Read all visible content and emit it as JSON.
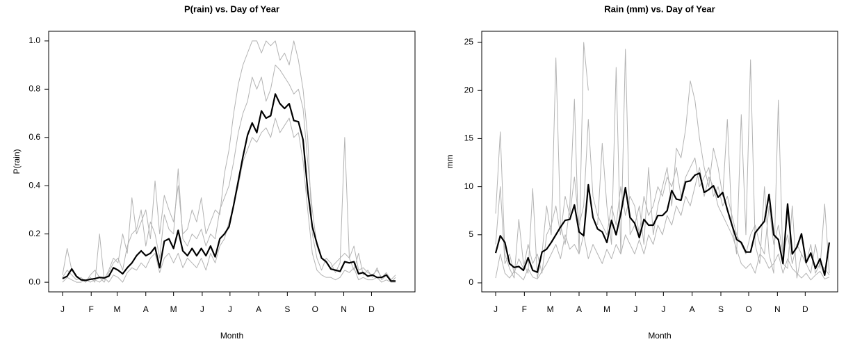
{
  "chart_data": [
    {
      "type": "line",
      "title": "P(rain) vs. Day of Year",
      "xlabel": "Month",
      "ylabel": "P(rain)",
      "x": [
        1,
        6,
        11,
        16,
        21,
        26,
        31,
        36,
        41,
        46,
        51,
        56,
        61,
        66,
        71,
        76,
        81,
        86,
        91,
        96,
        101,
        106,
        111,
        116,
        121,
        126,
        131,
        136,
        141,
        146,
        151,
        156,
        161,
        166,
        171,
        176,
        181,
        186,
        191,
        196,
        201,
        206,
        211,
        216,
        221,
        226,
        231,
        236,
        241,
        246,
        251,
        256,
        261,
        266,
        271,
        276,
        281,
        286,
        291,
        296,
        301,
        306,
        311,
        316,
        321,
        326,
        331,
        336,
        341,
        346,
        351,
        356,
        361
      ],
      "xlim": [
        -14,
        382
      ],
      "xticks": [
        {
          "value": 1,
          "label": "J"
        },
        {
          "value": 32,
          "label": "F"
        },
        {
          "value": 60,
          "label": "M"
        },
        {
          "value": 91,
          "label": "A"
        },
        {
          "value": 121,
          "label": "M"
        },
        {
          "value": 152,
          "label": "J"
        },
        {
          "value": 182,
          "label": "J"
        },
        {
          "value": 213,
          "label": "A"
        },
        {
          "value": 244,
          "label": "S"
        },
        {
          "value": 274,
          "label": "O"
        },
        {
          "value": 305,
          "label": "N"
        },
        {
          "value": 335,
          "label": "D"
        }
      ],
      "ylim": [
        -0.04,
        1.04
      ],
      "yticks": [
        {
          "value": 0,
          "label": "0.0"
        },
        {
          "value": 0.2,
          "label": "0.2"
        },
        {
          "value": 0.4,
          "label": "0.4"
        },
        {
          "value": 0.6,
          "label": "0.6"
        },
        {
          "value": 0.8,
          "label": "0.8"
        },
        {
          "value": 1,
          "label": "1.0"
        }
      ],
      "series": [
        {
          "color": "#b3b3b3",
          "values": [
            0.03,
            0.14,
            0.05,
            0.02,
            0.01,
            0.0,
            0.02,
            0.0,
            0.2,
            0.01,
            0.05,
            0.1,
            0.08,
            0.2,
            0.12,
            0.35,
            0.2,
            0.25,
            0.3,
            0.18,
            0.42,
            0.2,
            0.36,
            0.3,
            0.25,
            0.4,
            0.2,
            0.22,
            0.3,
            0.25,
            0.35,
            0.2,
            0.25,
            0.3,
            0.28,
            0.45,
            0.55,
            0.7,
            0.82,
            0.9,
            0.95,
            1.0,
            1.0,
            0.95,
            1.0,
            0.98,
            1.0,
            0.92,
            0.95,
            0.9,
            1.0,
            0.92,
            0.8,
            0.6,
            0.2,
            0.1,
            0.05,
            0.1,
            0.08,
            0.04,
            0.08,
            0.6,
            0.1,
            0.05,
            0.12,
            0.03,
            0.05,
            0.02,
            0.06,
            0.01,
            0.03,
            0.0,
            0.02
          ]
        },
        {
          "color": "#b3b3b3",
          "values": [
            0.0,
            0.02,
            0.01,
            0.0,
            0.0,
            0.01,
            0.0,
            0.01,
            0.0,
            0.02,
            0.0,
            0.03,
            0.02,
            0.0,
            0.04,
            0.06,
            0.05,
            0.08,
            0.06,
            0.1,
            0.12,
            0.04,
            0.1,
            0.12,
            0.08,
            0.12,
            0.06,
            0.1,
            0.08,
            0.06,
            0.1,
            0.05,
            0.12,
            0.08,
            0.15,
            0.18,
            0.25,
            0.32,
            0.4,
            0.5,
            0.55,
            0.6,
            0.58,
            0.62,
            0.64,
            0.6,
            0.68,
            0.62,
            0.65,
            0.68,
            0.6,
            0.62,
            0.5,
            0.3,
            0.12,
            0.05,
            0.03,
            0.02,
            0.02,
            0.01,
            0.02,
            0.05,
            0.04,
            0.06,
            0.01,
            0.02,
            0.01,
            0.01,
            0.02,
            0.0,
            0.01,
            0.0,
            0.0
          ]
        },
        {
          "color": "#b3b3b3",
          "values": [
            0.02,
            0.05,
            0.03,
            0.01,
            0.02,
            0.0,
            0.03,
            0.05,
            0.02,
            0.0,
            0.04,
            0.08,
            0.1,
            0.05,
            0.15,
            0.2,
            0.22,
            0.3,
            0.15,
            0.25,
            0.2,
            0.1,
            0.28,
            0.22,
            0.2,
            0.47,
            0.18,
            0.15,
            0.2,
            0.18,
            0.22,
            0.15,
            0.2,
            0.18,
            0.3,
            0.35,
            0.4,
            0.5,
            0.62,
            0.7,
            0.75,
            0.85,
            0.8,
            0.85,
            0.75,
            0.8,
            0.9,
            0.88,
            0.85,
            0.82,
            0.78,
            0.8,
            0.72,
            0.5,
            0.3,
            0.15,
            0.1,
            0.08,
            0.06,
            0.08,
            0.1,
            0.12,
            0.1,
            0.15,
            0.05,
            0.06,
            0.04,
            0.03,
            0.05,
            0.02,
            0.04,
            0.01,
            0.03
          ]
        },
        {
          "color": "#000000",
          "values": [
            0.015,
            0.025,
            0.055,
            0.025,
            0.01,
            0.008,
            0.012,
            0.015,
            0.02,
            0.018,
            0.025,
            0.06,
            0.05,
            0.035,
            0.06,
            0.08,
            0.11,
            0.13,
            0.11,
            0.12,
            0.145,
            0.06,
            0.17,
            0.18,
            0.14,
            0.215,
            0.13,
            0.11,
            0.14,
            0.11,
            0.14,
            0.11,
            0.15,
            0.105,
            0.18,
            0.2,
            0.23,
            0.32,
            0.42,
            0.52,
            0.61,
            0.66,
            0.62,
            0.71,
            0.68,
            0.69,
            0.78,
            0.74,
            0.72,
            0.74,
            0.67,
            0.665,
            0.59,
            0.38,
            0.23,
            0.16,
            0.1,
            0.085,
            0.055,
            0.05,
            0.045,
            0.085,
            0.08,
            0.085,
            0.035,
            0.04,
            0.025,
            0.03,
            0.02,
            0.02,
            0.03,
            0.005,
            0.005
          ]
        }
      ]
    },
    {
      "type": "line",
      "title": "Rain (mm) vs. Day of Year",
      "xlabel": "Month",
      "ylabel": "mm",
      "x": [
        1,
        6,
        11,
        16,
        21,
        26,
        31,
        36,
        41,
        46,
        51,
        56,
        61,
        66,
        71,
        76,
        81,
        86,
        91,
        96,
        101,
        106,
        111,
        116,
        121,
        126,
        131,
        136,
        141,
        146,
        151,
        156,
        161,
        166,
        171,
        176,
        181,
        186,
        191,
        196,
        201,
        206,
        211,
        216,
        221,
        226,
        231,
        236,
        241,
        246,
        251,
        256,
        261,
        266,
        271,
        276,
        281,
        286,
        291,
        296,
        301,
        306,
        311,
        316,
        321,
        326,
        331,
        336,
        341,
        346,
        351,
        356,
        361
      ],
      "xlim": [
        -14,
        370
      ],
      "xticks": [
        {
          "value": 1,
          "label": "J"
        },
        {
          "value": 32,
          "label": "F"
        },
        {
          "value": 60,
          "label": "M"
        },
        {
          "value": 91,
          "label": "A"
        },
        {
          "value": 121,
          "label": "M"
        },
        {
          "value": 152,
          "label": "J"
        },
        {
          "value": 182,
          "label": "J"
        },
        {
          "value": 213,
          "label": "A"
        },
        {
          "value": 244,
          "label": "S"
        },
        {
          "value": 274,
          "label": "O"
        },
        {
          "value": 305,
          "label": "N"
        },
        {
          "value": 335,
          "label": "D"
        }
      ],
      "ylim": [
        -0.94,
        26.16
      ],
      "yticks": [
        0,
        5,
        10,
        15,
        20,
        25
      ],
      "series": [
        {
          "color": "#b3b3b3",
          "values": [
            7.2,
            15.7,
            3.0,
            1.5,
            0.5,
            6.6,
            2.0,
            1.0,
            9.8,
            0.5,
            3.0,
            8.0,
            5.0,
            23.4,
            6.0,
            4.0,
            8.0,
            19.1,
            3.0,
            25.0,
            20.0,
            null,
            6.0,
            14.5,
            8.0,
            4.0,
            22.4,
            3.0,
            24.3,
            5.0,
            6.0,
            8.0,
            4.0,
            12.0,
            5.0,
            8.0,
            10.0,
            12.0,
            8.0,
            14.0,
            13.0,
            16.0,
            21.0,
            19.0,
            15.0,
            12.0,
            10.0,
            14.0,
            12.0,
            9.0,
            17.0,
            6.0,
            3.0,
            17.5,
            5.0,
            23.2,
            4.0,
            2.0,
            10.0,
            3.0,
            1.0,
            19.0,
            2.0,
            1.5,
            8.0,
            0.5,
            3.0,
            2.0,
            1.0,
            4.0,
            1.5,
            8.2,
            1.0
          ]
        },
        {
          "color": "#b3b3b3",
          "values": [
            0.5,
            3,
            1,
            0.5,
            1.2,
            0.8,
            0.3,
            1.5,
            0.6,
            0.4,
            1.2,
            2.0,
            3,
            4,
            2.5,
            5,
            3.5,
            4,
            3,
            5,
            2.5,
            4,
            3,
            2,
            3.5,
            2.5,
            4,
            3,
            5,
            4,
            3,
            4.5,
            3,
            5,
            4,
            6,
            5,
            7,
            6,
            8,
            7,
            9,
            8,
            10,
            12,
            9,
            11,
            10,
            8,
            7,
            6,
            5,
            3.5,
            2,
            1.5,
            2,
            1,
            3,
            2.5,
            1.5,
            2,
            3,
            1,
            2.5,
            1.5,
            1,
            0.5,
            1,
            0.3,
            0.8,
            1.2,
            0.4,
            0.6
          ]
        },
        {
          "color": "#b3b3b3",
          "values": [
            4,
            10,
            2,
            3,
            1,
            2.5,
            1.5,
            4,
            2,
            3,
            1,
            5,
            6,
            8,
            5,
            9,
            7,
            11,
            6,
            8,
            17,
            9,
            7,
            6,
            5,
            8,
            6,
            10,
            7,
            9,
            8,
            5,
            9,
            7,
            8,
            10,
            9,
            11,
            10,
            12,
            9,
            11,
            12,
            13,
            10,
            11,
            12,
            9,
            10,
            8,
            9,
            7,
            5,
            4,
            3,
            5,
            6,
            4,
            3,
            8,
            4,
            6,
            3,
            5,
            2,
            4,
            3,
            2,
            4,
            1,
            2,
            1.5,
            0.8
          ]
        },
        {
          "color": "#000000",
          "values": [
            3.1,
            4.9,
            4.2,
            2.0,
            1.6,
            1.7,
            1.3,
            2.6,
            1.3,
            1.1,
            3.2,
            3.5,
            4.2,
            5.0,
            5.8,
            6.5,
            6.6,
            8.1,
            5.3,
            4.9,
            10.2,
            6.8,
            5.6,
            5.3,
            4.2,
            6.5,
            5.0,
            7.2,
            9.9,
            6.8,
            6.2,
            4.7,
            6.6,
            6.0,
            6.0,
            7.0,
            7.0,
            7.5,
            9.6,
            8.7,
            8.6,
            10.5,
            10.6,
            11.2,
            11.4,
            9.4,
            9.7,
            10.1,
            8.9,
            9.4,
            7.6,
            6.0,
            4.5,
            4.2,
            3.2,
            3.2,
            5.2,
            5.8,
            6.4,
            9.2,
            5.0,
            4.5,
            2.0,
            8.2,
            3.0,
            3.7,
            5.1,
            2.1,
            3.1,
            1.5,
            2.5,
            0.8,
            4.2
          ]
        }
      ]
    }
  ]
}
